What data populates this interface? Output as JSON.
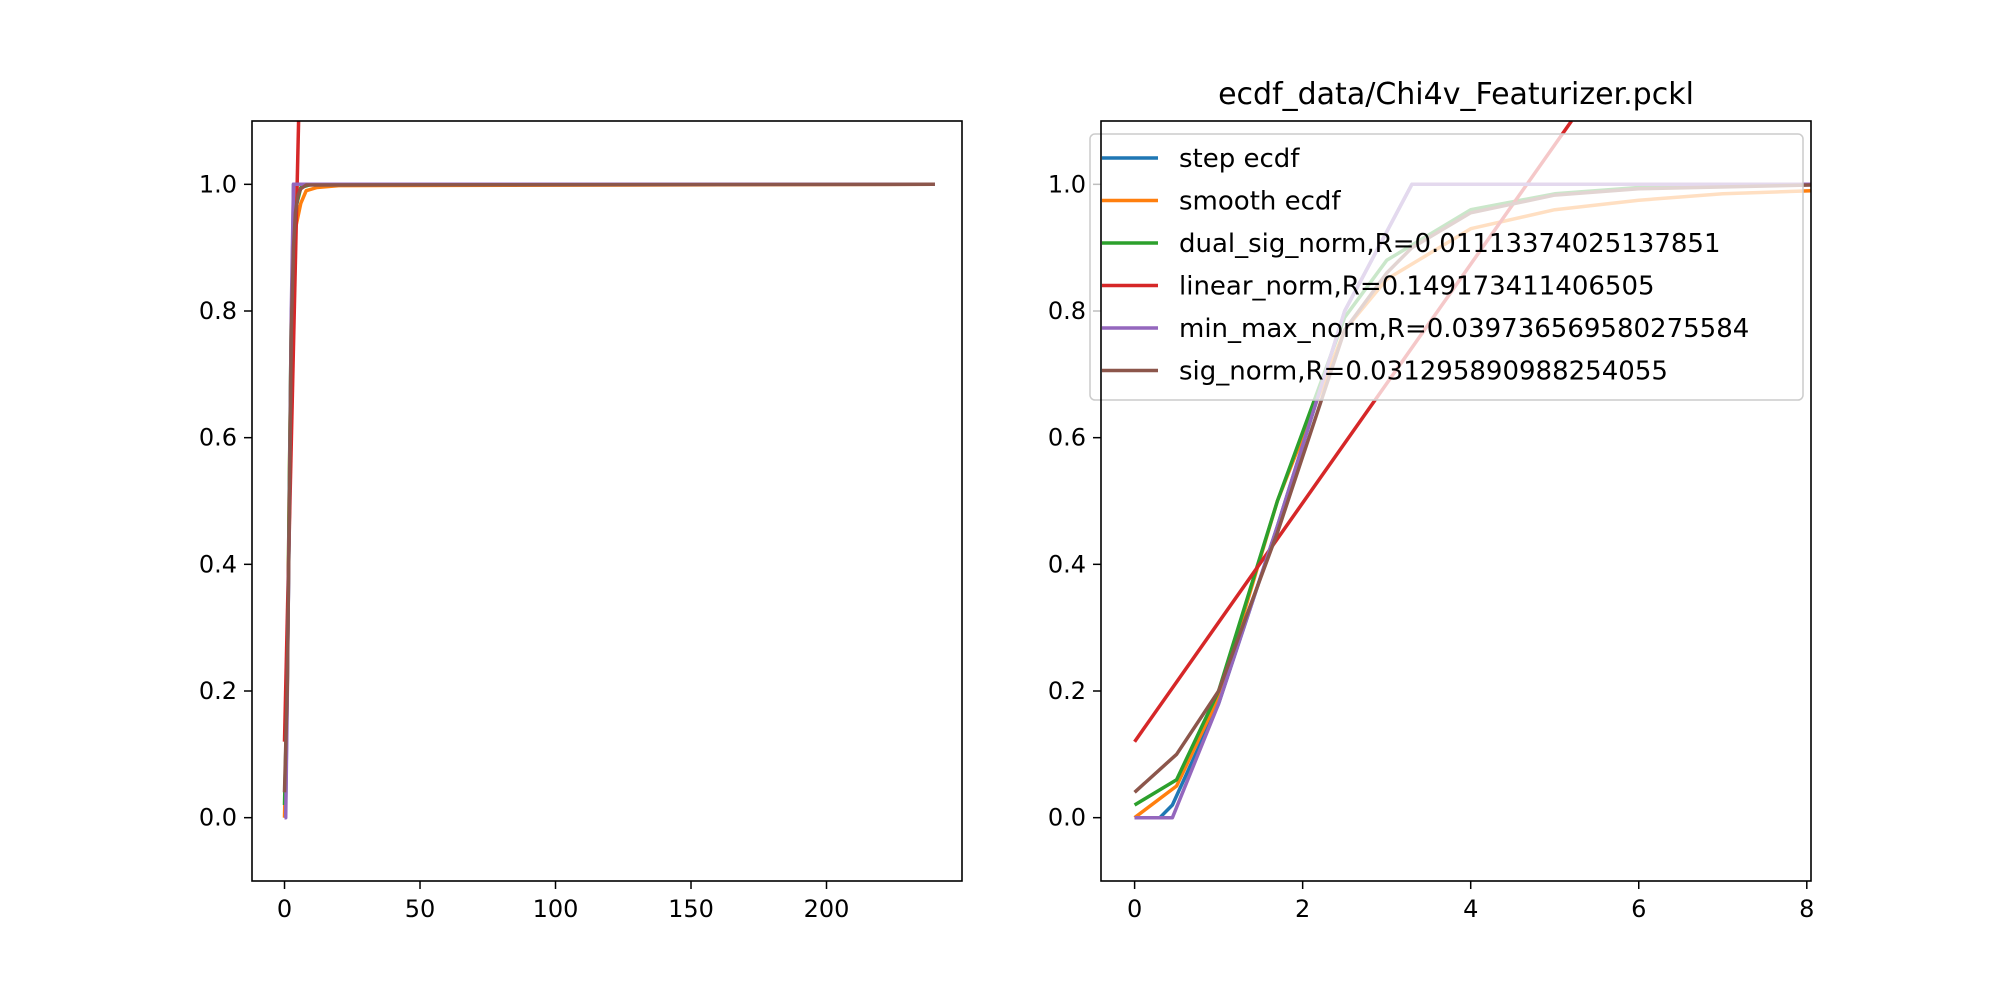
{
  "chart_data": [
    {
      "type": "line",
      "title": "",
      "xlabel": "",
      "ylabel": "",
      "xlim": [
        -12,
        250
      ],
      "ylim": [
        -0.1,
        1.1
      ],
      "xticks": [
        0,
        50,
        100,
        150,
        200
      ],
      "yticks": [
        0.0,
        0.2,
        0.4,
        0.6,
        0.8,
        1.0
      ],
      "grid": false,
      "legend": null,
      "series": [
        {
          "key": "step_ecdf",
          "color": "#1f77b4",
          "points": [
            [
              0,
              0
            ],
            [
              0.3,
              0
            ],
            [
              0.45,
              0.02
            ],
            [
              3.3,
              1.0
            ],
            [
              240,
              1.0
            ]
          ]
        },
        {
          "key": "smooth_ecdf",
          "color": "#ff7f0e",
          "points": [
            [
              0,
              0
            ],
            [
              1,
              0.19
            ],
            [
              1.7,
              0.5
            ],
            [
              2.5,
              0.77
            ],
            [
              4,
              0.93
            ],
            [
              6,
              0.97
            ],
            [
              8,
              0.99
            ],
            [
              12,
              0.995
            ],
            [
              20,
              0.998
            ],
            [
              240,
              1.0
            ]
          ]
        },
        {
          "key": "dual_sig_norm",
          "color": "#2ca02c",
          "points": [
            [
              0,
              0.02
            ],
            [
              1,
              0.2
            ],
            [
              1.7,
              0.5
            ],
            [
              2.5,
              0.79
            ],
            [
              4,
              0.96
            ],
            [
              6,
              0.995
            ],
            [
              10,
              1.0
            ],
            [
              240,
              1.0
            ]
          ]
        },
        {
          "key": "linear_norm",
          "color": "#d62728",
          "points": [
            [
              0,
              0.12
            ],
            [
              5.2,
              1.1
            ]
          ]
        },
        {
          "key": "min_max_norm",
          "color": "#9467bd",
          "points": [
            [
              0,
              0
            ],
            [
              0.45,
              0
            ],
            [
              1,
              0.18
            ],
            [
              1.7,
              0.46
            ],
            [
              2.5,
              0.8
            ],
            [
              3.3,
              1.0
            ],
            [
              240,
              1.0
            ]
          ]
        },
        {
          "key": "sig_norm",
          "color": "#8c564b",
          "points": [
            [
              0,
              0.04
            ],
            [
              1,
              0.2
            ],
            [
              1.7,
              0.45
            ],
            [
              2.5,
              0.77
            ],
            [
              3.3,
              0.9
            ],
            [
              4,
              0.955
            ],
            [
              5,
              0.983
            ],
            [
              6,
              0.993
            ],
            [
              8,
              0.999
            ],
            [
              240,
              1.0
            ]
          ]
        }
      ]
    },
    {
      "type": "line",
      "title": "ecdf_data/Chi4v_Featurizer.pckl",
      "xlabel": "",
      "ylabel": "",
      "xlim": [
        -0.4,
        8.05
      ],
      "ylim": [
        -0.1,
        1.1
      ],
      "xticks": [
        0,
        2,
        4,
        6,
        8
      ],
      "yticks": [
        0.0,
        0.2,
        0.4,
        0.6,
        0.8,
        1.0
      ],
      "grid": false,
      "legend": "top-right",
      "series": [
        {
          "key": "step_ecdf",
          "name": "step ecdf",
          "color": "#1f77b4",
          "points": [
            [
              0,
              0
            ],
            [
              0.3,
              0
            ],
            [
              0.45,
              0.02
            ],
            [
              1,
              0.18
            ],
            [
              1.7,
              0.46
            ],
            [
              2.5,
              0.8
            ],
            [
              3.3,
              1.0
            ],
            [
              8.05,
              1.0
            ]
          ]
        },
        {
          "key": "smooth_ecdf",
          "name": "smooth ecdf",
          "color": "#ff7f0e",
          "points": [
            [
              0,
              0
            ],
            [
              0.5,
              0.05
            ],
            [
              1,
              0.19
            ],
            [
              1.7,
              0.5
            ],
            [
              2.5,
              0.77
            ],
            [
              3,
              0.85
            ],
            [
              4,
              0.93
            ],
            [
              5,
              0.96
            ],
            [
              6,
              0.975
            ],
            [
              7,
              0.985
            ],
            [
              8.05,
              0.99
            ]
          ]
        },
        {
          "key": "dual_sig_norm",
          "name": "dual_sig_norm,R=0.01113374025137851",
          "color": "#2ca02c",
          "points": [
            [
              0,
              0.02
            ],
            [
              0.5,
              0.06
            ],
            [
              1,
              0.2
            ],
            [
              1.7,
              0.5
            ],
            [
              2.5,
              0.79
            ],
            [
              3,
              0.88
            ],
            [
              4,
              0.96
            ],
            [
              5,
              0.985
            ],
            [
              6,
              0.995
            ],
            [
              8.05,
              1.0
            ]
          ]
        },
        {
          "key": "linear_norm",
          "name": "linear_norm,R=0.149173411406505",
          "color": "#d62728",
          "points": [
            [
              0,
              0.12
            ],
            [
              5.2,
              1.1
            ]
          ]
        },
        {
          "key": "min_max_norm",
          "name": "min_max_norm,R=0.039736569580275584",
          "color": "#9467bd",
          "points": [
            [
              0,
              0
            ],
            [
              0.45,
              0
            ],
            [
              1,
              0.18
            ],
            [
              1.7,
              0.46
            ],
            [
              2.5,
              0.8
            ],
            [
              3.3,
              1.0
            ],
            [
              8.05,
              1.0
            ]
          ]
        },
        {
          "key": "sig_norm",
          "name": "sig_norm,R=0.031295890988254055",
          "color": "#8c564b",
          "points": [
            [
              0,
              0.04
            ],
            [
              0.5,
              0.1
            ],
            [
              1,
              0.2
            ],
            [
              1.7,
              0.45
            ],
            [
              2.5,
              0.77
            ],
            [
              3,
              0.86
            ],
            [
              3.3,
              0.9
            ],
            [
              4,
              0.955
            ],
            [
              5,
              0.983
            ],
            [
              6,
              0.993
            ],
            [
              8.05,
              0.999
            ]
          ]
        }
      ]
    }
  ]
}
